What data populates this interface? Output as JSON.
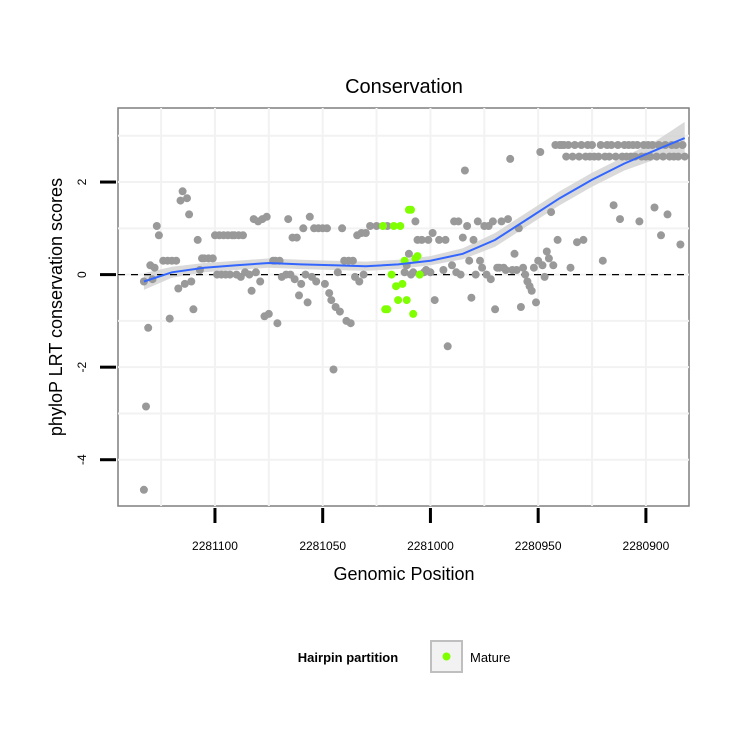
{
  "chart_data": {
    "type": "scatter",
    "title": "Conservation",
    "xlabel": "Genomic Position",
    "ylabel": "phyloP LRT conservation scores",
    "x_reversed": true,
    "xlim": [
      2281145,
      2280880
    ],
    "ylim": [
      -5,
      3.6
    ],
    "x_ticks": [
      2281100,
      2281050,
      2281000,
      2280950,
      2280900
    ],
    "x_tick_labels": [
      "2281100",
      "2281050",
      "2281000",
      "2280950",
      "2280900"
    ],
    "y_ticks": [
      -4,
      -2,
      0,
      2
    ],
    "y_tick_labels": [
      "-4",
      "-2",
      "0",
      "2"
    ],
    "grid": true,
    "reference_line": {
      "y": 0,
      "style": "dashed"
    },
    "legend": {
      "title": "Hairpin partition",
      "position": "bottom",
      "entries": [
        {
          "label": "Mature",
          "color": "#7fff00"
        }
      ]
    },
    "colors": {
      "points": "#999999",
      "mature": "#7fff00",
      "smooth": "#3366ff",
      "band": "#d3d3d3",
      "panel_border": "#7f7f7f",
      "grid": "#f2f2f2"
    },
    "series": [
      {
        "name": "",
        "color": "#999999",
        "points": [
          [
            2281133,
            -0.15
          ],
          [
            2281133,
            -4.65
          ],
          [
            2281132,
            -2.85
          ],
          [
            2281131,
            -1.15
          ],
          [
            2281130,
            0.2
          ],
          [
            2281129,
            -0.1
          ],
          [
            2281128,
            0.15
          ],
          [
            2281127,
            1.05
          ],
          [
            2281126,
            0.85
          ],
          [
            2281124,
            0.3
          ],
          [
            2281122,
            0.3
          ],
          [
            2281121,
            -0.95
          ],
          [
            2281120,
            0.3
          ],
          [
            2281118,
            0.3
          ],
          [
            2281117,
            -0.3
          ],
          [
            2281116,
            1.6
          ],
          [
            2281115,
            1.8
          ],
          [
            2281114,
            -0.2
          ],
          [
            2281113,
            1.65
          ],
          [
            2281112,
            1.3
          ],
          [
            2281111,
            -0.15
          ],
          [
            2281110,
            -0.75
          ],
          [
            2281108,
            0.75
          ],
          [
            2281107,
            0.1
          ],
          [
            2281106,
            0.35
          ],
          [
            2281105,
            0.35
          ],
          [
            2281103,
            0.35
          ],
          [
            2281101,
            0.35
          ],
          [
            2281100,
            0.85
          ],
          [
            2281099,
            0.0
          ],
          [
            2281098,
            0.85
          ],
          [
            2281097,
            0.0
          ],
          [
            2281096,
            0.85
          ],
          [
            2281095,
            0.0
          ],
          [
            2281094,
            0.85
          ],
          [
            2281093,
            0.0
          ],
          [
            2281092,
            0.85
          ],
          [
            2281091,
            0.85
          ],
          [
            2281090,
            0.0
          ],
          [
            2281089,
            0.85
          ],
          [
            2281088,
            -0.05
          ],
          [
            2281087,
            0.85
          ],
          [
            2281086,
            0.05
          ],
          [
            2281084,
            0.0
          ],
          [
            2281083,
            -0.35
          ],
          [
            2281082,
            1.2
          ],
          [
            2281081,
            0.05
          ],
          [
            2281080,
            1.15
          ],
          [
            2281079,
            -0.15
          ],
          [
            2281078,
            1.2
          ],
          [
            2281077,
            -0.9
          ],
          [
            2281076,
            1.25
          ],
          [
            2281075,
            -0.85
          ],
          [
            2281073,
            0.3
          ],
          [
            2281072,
            0.3
          ],
          [
            2281071,
            -1.05
          ],
          [
            2281070,
            0.3
          ],
          [
            2281069,
            -0.05
          ],
          [
            2281067,
            0.0
          ],
          [
            2281066,
            1.2
          ],
          [
            2281065,
            0.0
          ],
          [
            2281064,
            0.8
          ],
          [
            2281063,
            -0.1
          ],
          [
            2281062,
            0.8
          ],
          [
            2281061,
            -0.45
          ],
          [
            2281060,
            -0.2
          ],
          [
            2281059,
            1.0
          ],
          [
            2281058,
            0.0
          ],
          [
            2281057,
            -0.6
          ],
          [
            2281056,
            1.25
          ],
          [
            2281055,
            -0.05
          ],
          [
            2281054,
            1.0
          ],
          [
            2281053,
            -0.15
          ],
          [
            2281052,
            1.0
          ],
          [
            2281050,
            1.0
          ],
          [
            2281049,
            -0.2
          ],
          [
            2281048,
            1.0
          ],
          [
            2281047,
            -0.4
          ],
          [
            2281046,
            -0.55
          ],
          [
            2281045,
            -2.05
          ],
          [
            2281044,
            -0.7
          ],
          [
            2281043,
            0.05
          ],
          [
            2281042,
            -0.8
          ],
          [
            2281041,
            1.0
          ],
          [
            2281040,
            0.3
          ],
          [
            2281039,
            -1.0
          ],
          [
            2281038,
            0.3
          ],
          [
            2281037,
            -1.05
          ],
          [
            2281036,
            0.3
          ],
          [
            2281035,
            -0.05
          ],
          [
            2281034,
            0.85
          ],
          [
            2281033,
            -0.15
          ],
          [
            2281032,
            0.9
          ],
          [
            2281031,
            0.0
          ],
          [
            2281030,
            0.9
          ],
          [
            2281028,
            1.05
          ],
          [
            2281025,
            1.05
          ],
          [
            2281020,
            1.05
          ],
          [
            2281012,
            0.05
          ],
          [
            2281011,
            0.2
          ],
          [
            2281010,
            0.45
          ],
          [
            2281009,
            0.0
          ],
          [
            2281008,
            0.05
          ],
          [
            2281007,
            1.15
          ],
          [
            2281006,
            0.75
          ],
          [
            2281005,
            0.0
          ],
          [
            2281004,
            0.75
          ],
          [
            2281003,
            0.05
          ],
          [
            2281002,
            0.1
          ],
          [
            2281001,
            0.75
          ],
          [
            2281000,
            0.05
          ],
          [
            2280999,
            0.9
          ],
          [
            2280998,
            -0.55
          ],
          [
            2280996,
            0.75
          ],
          [
            2280994,
            0.1
          ],
          [
            2280993,
            0.75
          ],
          [
            2280992,
            -1.55
          ],
          [
            2280990,
            0.2
          ],
          [
            2280989,
            1.15
          ],
          [
            2280988,
            0.05
          ],
          [
            2280987,
            1.15
          ],
          [
            2280986,
            0.0
          ],
          [
            2280985,
            0.8
          ],
          [
            2280984,
            2.25
          ],
          [
            2280983,
            1.05
          ],
          [
            2280982,
            0.3
          ],
          [
            2280981,
            -0.5
          ],
          [
            2280980,
            0.75
          ],
          [
            2280979,
            0.0
          ],
          [
            2280978,
            1.15
          ],
          [
            2280977,
            0.3
          ],
          [
            2280976,
            0.15
          ],
          [
            2280975,
            1.05
          ],
          [
            2280974,
            0.0
          ],
          [
            2280973,
            1.05
          ],
          [
            2280972,
            -0.1
          ],
          [
            2280971,
            1.15
          ],
          [
            2280970,
            -0.75
          ],
          [
            2280969,
            0.15
          ],
          [
            2280968,
            0.15
          ],
          [
            2280967,
            1.15
          ],
          [
            2280966,
            0.15
          ],
          [
            2280965,
            0.1
          ],
          [
            2280964,
            1.2
          ],
          [
            2280963,
            2.5
          ],
          [
            2280962,
            0.1
          ],
          [
            2280961,
            0.45
          ],
          [
            2280960,
            0.1
          ],
          [
            2280959,
            1.0
          ],
          [
            2280958,
            -0.7
          ],
          [
            2280957,
            0.15
          ],
          [
            2280956,
            0.0
          ],
          [
            2280955,
            -0.15
          ],
          [
            2280954,
            -0.25
          ],
          [
            2280953,
            -0.35
          ],
          [
            2280952,
            0.15
          ],
          [
            2280951,
            -0.6
          ],
          [
            2280950,
            0.3
          ],
          [
            2280949,
            2.65
          ],
          [
            2280948,
            0.2
          ],
          [
            2280947,
            -0.05
          ],
          [
            2280946,
            0.5
          ],
          [
            2280945,
            0.35
          ],
          [
            2280944,
            1.35
          ],
          [
            2280943,
            0.2
          ],
          [
            2280942,
            2.8
          ],
          [
            2280941,
            0.75
          ],
          [
            2280940,
            2.8
          ],
          [
            2280939,
            2.8
          ],
          [
            2280938,
            2.8
          ],
          [
            2280937,
            2.55
          ],
          [
            2280936,
            2.8
          ],
          [
            2280935,
            0.15
          ],
          [
            2280934,
            2.55
          ],
          [
            2280933,
            2.8
          ],
          [
            2280932,
            0.7
          ],
          [
            2280931,
            2.55
          ],
          [
            2280930,
            2.8
          ],
          [
            2280929,
            0.75
          ],
          [
            2280928,
            2.55
          ],
          [
            2280927,
            2.8
          ],
          [
            2280926,
            2.55
          ],
          [
            2280925,
            2.8
          ],
          [
            2280924,
            2.55
          ],
          [
            2280922,
            2.55
          ],
          [
            2280921,
            2.8
          ],
          [
            2280920,
            0.3
          ],
          [
            2280919,
            2.55
          ],
          [
            2280918,
            2.8
          ],
          [
            2280917,
            2.55
          ],
          [
            2280916,
            2.8
          ],
          [
            2280915,
            1.5
          ],
          [
            2280914,
            2.55
          ],
          [
            2280913,
            2.8
          ],
          [
            2280912,
            1.2
          ],
          [
            2280911,
            2.55
          ],
          [
            2280910,
            2.8
          ],
          [
            2280909,
            2.55
          ],
          [
            2280908,
            2.8
          ],
          [
            2280907,
            2.55
          ],
          [
            2280906,
            2.8
          ],
          [
            2280905,
            2.55
          ],
          [
            2280904,
            2.8
          ],
          [
            2280903,
            1.15
          ],
          [
            2280902,
            2.55
          ],
          [
            2280901,
            2.8
          ],
          [
            2280900,
            2.55
          ],
          [
            2280899,
            2.8
          ],
          [
            2280898,
            2.55
          ],
          [
            2280897,
            2.8
          ],
          [
            2280896,
            1.45
          ],
          [
            2280895,
            2.55
          ],
          [
            2280894,
            2.8
          ],
          [
            2280893,
            0.85
          ],
          [
            2280892,
            2.55
          ],
          [
            2280891,
            2.8
          ],
          [
            2280890,
            1.3
          ],
          [
            2280889,
            2.55
          ],
          [
            2280888,
            2.8
          ],
          [
            2280887,
            2.55
          ],
          [
            2280886,
            2.8
          ],
          [
            2280885,
            2.55
          ],
          [
            2280884,
            0.65
          ],
          [
            2280883,
            2.8
          ],
          [
            2280882,
            2.55
          ]
        ]
      },
      {
        "name": "Mature",
        "color": "#7fff00",
        "points": [
          [
            2281022,
            1.05
          ],
          [
            2281021,
            -0.75
          ],
          [
            2281020,
            -0.75
          ],
          [
            2281018,
            0.0
          ],
          [
            2281017,
            1.05
          ],
          [
            2281016,
            -0.25
          ],
          [
            2281015,
            -0.55
          ],
          [
            2281014,
            1.05
          ],
          [
            2281013,
            -0.2
          ],
          [
            2281012,
            0.3
          ],
          [
            2281011,
            -0.55
          ],
          [
            2281010,
            1.4
          ],
          [
            2281009,
            1.4
          ],
          [
            2281008,
            -0.85
          ],
          [
            2281007,
            0.35
          ],
          [
            2281006,
            0.4
          ],
          [
            2281005,
            0.0
          ]
        ]
      }
    ],
    "smooth": {
      "name": "",
      "x": [
        2281133,
        2281120,
        2281105,
        2281090,
        2281075,
        2281060,
        2281045,
        2281030,
        2281015,
        2281000,
        2280985,
        2280970,
        2280955,
        2280940,
        2280925,
        2280910,
        2280895,
        2280882
      ],
      "y": [
        -0.15,
        0.05,
        0.15,
        0.2,
        0.25,
        0.22,
        0.2,
        0.18,
        0.22,
        0.3,
        0.45,
        0.75,
        1.2,
        1.65,
        2.05,
        2.4,
        2.7,
        2.95
      ],
      "se": [
        0.18,
        0.12,
        0.1,
        0.1,
        0.1,
        0.1,
        0.1,
        0.1,
        0.1,
        0.1,
        0.12,
        0.15,
        0.15,
        0.15,
        0.15,
        0.15,
        0.2,
        0.35
      ]
    }
  }
}
